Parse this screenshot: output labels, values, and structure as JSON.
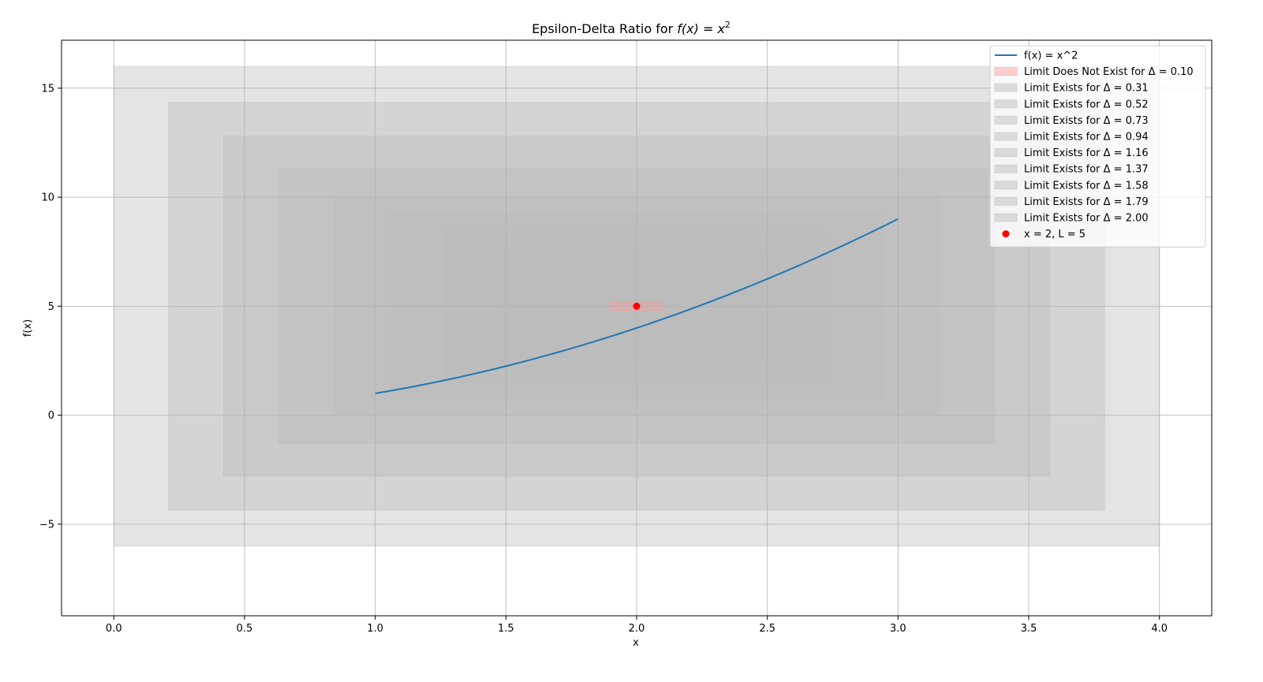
{
  "chart_data": {
    "type": "line",
    "title_prefix": "Epsilon-Delta Ratio for ",
    "title_math": "f(x) = x",
    "title_sup": "2",
    "xlabel": "x",
    "ylabel": "f(x)",
    "xlim": [
      -0.2,
      4.2
    ],
    "ylim": [
      -9.2,
      17.2
    ],
    "xticks": [
      0.0,
      0.5,
      1.0,
      1.5,
      2.0,
      2.5,
      3.0,
      3.5,
      4.0
    ],
    "xtick_labels": [
      "0.0",
      "0.5",
      "1.0",
      "1.5",
      "2.0",
      "2.5",
      "3.0",
      "3.5",
      "4.0"
    ],
    "yticks": [
      -5,
      0,
      5,
      10,
      15
    ],
    "ytick_labels": [
      "−5",
      "0",
      "5",
      "10",
      "15"
    ],
    "grid": true,
    "legend_position": "top-right",
    "curve": {
      "name": "f(x) = x^2",
      "color": "#1f77b4",
      "x_range": [
        1.0,
        3.0
      ]
    },
    "point": {
      "name": "x = 2, L = 5",
      "x": 2,
      "y": 5,
      "color": "#ff0000"
    },
    "x0": 2,
    "L": 5,
    "rectangles": [
      {
        "label": "Limit Does Not Exist for Δ = 0.10",
        "delta": 0.1,
        "epsilon": 0.21,
        "color": "#ff9999"
      },
      {
        "label": "Limit Exists for Δ = 0.31",
        "delta": 0.31,
        "epsilon": 1.32,
        "color": "#bbbbbb"
      },
      {
        "label": "Limit Exists for Δ = 0.52",
        "delta": 0.52,
        "epsilon": 2.45,
        "color": "#bbbbbb"
      },
      {
        "label": "Limit Exists for Δ = 0.73",
        "delta": 0.73,
        "epsilon": 3.45,
        "color": "#bbbbbb"
      },
      {
        "label": "Limit Exists for Δ = 0.94",
        "delta": 0.94,
        "epsilon": 4.3,
        "color": "#bbbbbb"
      },
      {
        "label": "Limit Exists for Δ = 1.16",
        "delta": 1.16,
        "epsilon": 5.0,
        "color": "#bbbbbb"
      },
      {
        "label": "Limit Exists for Δ = 1.37",
        "delta": 1.37,
        "epsilon": 6.3,
        "color": "#bbbbbb"
      },
      {
        "label": "Limit Exists for Δ = 1.58",
        "delta": 1.58,
        "epsilon": 7.8,
        "color": "#bbbbbb"
      },
      {
        "label": "Limit Exists for Δ = 1.79",
        "delta": 1.79,
        "epsilon": 9.35,
        "color": "#bbbbbb"
      },
      {
        "label": "Limit Exists for Δ = 2.00",
        "delta": 2.0,
        "epsilon": 11.0,
        "color": "#bbbbbb"
      }
    ]
  }
}
